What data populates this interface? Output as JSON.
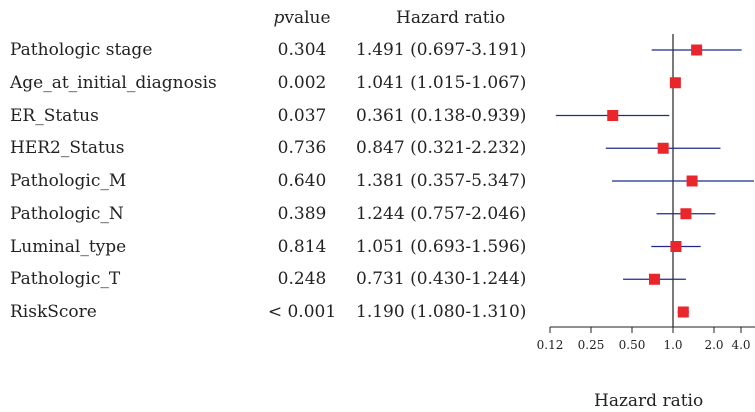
{
  "chart_data": {
    "type": "forest",
    "headers": {
      "p_prefix": "p",
      "p_suffix": "value",
      "hazard": "Hazard ratio"
    },
    "rows": [
      {
        "label": "Pathologic stage",
        "p": "0.304",
        "hr_text": "1.491 (0.697-3.191)",
        "hr": 1.491,
        "lo": 0.697,
        "hi": 3.191
      },
      {
        "label": "Age_at_initial_diagnosis",
        "p": "0.002",
        "hr_text": "1.041 (1.015-1.067)",
        "hr": 1.041,
        "lo": 1.015,
        "hi": 1.067
      },
      {
        "label": "ER_Status",
        "p": "0.037",
        "hr_text": "0.361 (0.138-0.939)",
        "hr": 0.361,
        "lo": 0.138,
        "hi": 0.939
      },
      {
        "label": "HER2_Status",
        "p": "0.736",
        "hr_text": "0.847 (0.321-2.232)",
        "hr": 0.847,
        "lo": 0.321,
        "hi": 2.232
      },
      {
        "label": "Pathologic_M",
        "p": "0.640",
        "hr_text": "1.381 (0.357-5.347)",
        "hr": 1.381,
        "lo": 0.357,
        "hi": 5.347
      },
      {
        "label": "Pathologic_N",
        "p": "0.389",
        "hr_text": "1.244 (0.757-2.046)",
        "hr": 1.244,
        "lo": 0.757,
        "hi": 2.046
      },
      {
        "label": "Luminal_type",
        "p": "0.814",
        "hr_text": "1.051 (0.693-1.596)",
        "hr": 1.051,
        "lo": 0.693,
        "hi": 1.596
      },
      {
        "label": "Pathologic_T",
        "p": "0.248",
        "hr_text": "0.731 (0.430-1.244)",
        "hr": 0.731,
        "lo": 0.43,
        "hi": 1.244
      },
      {
        "label": "RiskScore",
        "p": "< 0.001",
        "hr_text": "1.190 (1.080-1.310)",
        "hr": 1.19,
        "lo": 1.08,
        "hi": 1.31
      }
    ],
    "x_scale": "log2",
    "ticks": [
      0.125,
      0.25,
      0.5,
      1,
      2,
      4
    ],
    "tick_labels": [
      "0.12",
      "0.25",
      "0.50",
      "1.0",
      "2.0",
      "4.0"
    ],
    "xlim": [
      0.125,
      4
    ],
    "reference_line": 1,
    "xlabel": "Hazard ratio",
    "colors": {
      "point": "#e8262b",
      "ci": "#1f2a8c",
      "axis": "#222222",
      "ref": "#222222"
    }
  }
}
